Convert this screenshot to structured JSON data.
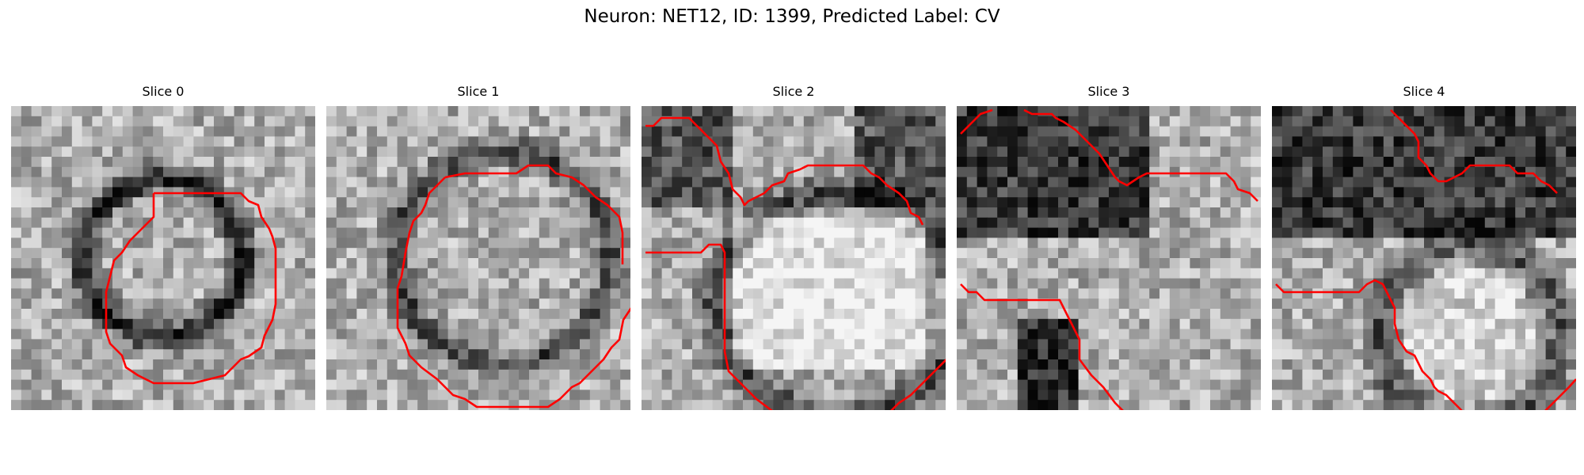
{
  "title": "Neuron: NET12, ID: 1399, Predicted Label: CV",
  "contour_color": "#ff0000",
  "slices": [
    {
      "label": "Slice 0"
    },
    {
      "label": "Slice 1"
    },
    {
      "label": "Slice 2"
    },
    {
      "label": "Slice 3"
    },
    {
      "label": "Slice 4"
    }
  ]
}
